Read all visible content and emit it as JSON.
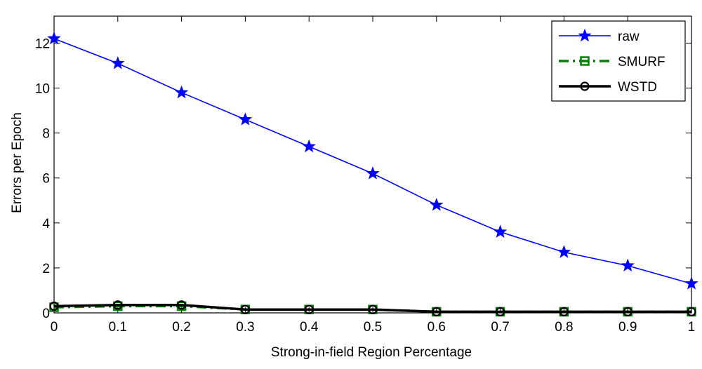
{
  "chart_data": {
    "type": "line",
    "title": "",
    "xlabel": "Strong-in-field Region Percentage",
    "ylabel": "Errors per Epoch",
    "x": [
      0,
      0.1,
      0.2,
      0.3,
      0.4,
      0.5,
      0.6,
      0.7,
      0.8,
      0.9,
      1
    ],
    "x_tick_labels": [
      "0",
      "0.1",
      "0.2",
      "0.3",
      "0.4",
      "0.5",
      "0.6",
      "0.7",
      "0.8",
      "0.9",
      "1"
    ],
    "y_ticks": [
      0,
      2,
      4,
      6,
      8,
      10,
      12
    ],
    "y_tick_labels": [
      "0",
      "2",
      "4",
      "6",
      "8",
      "10",
      "12"
    ],
    "xlim": [
      0,
      1
    ],
    "ylim": [
      0,
      13.2
    ],
    "grid": false,
    "legend_position": "top-right",
    "series": [
      {
        "name": "raw",
        "color": "#0000ff",
        "line_style": "solid",
        "marker": "star",
        "values": [
          12.2,
          11.1,
          9.8,
          8.6,
          7.4,
          6.2,
          4.8,
          3.6,
          2.7,
          2.1,
          1.3
        ]
      },
      {
        "name": "SMURF",
        "color": "#008000",
        "line_style": "dash-dot",
        "marker": "square",
        "values": [
          0.25,
          0.3,
          0.3,
          0.15,
          0.15,
          0.15,
          0.05,
          0.05,
          0.05,
          0.05,
          0.05
        ]
      },
      {
        "name": "WSTD",
        "color": "#000000",
        "line_style": "solid",
        "marker": "circle",
        "values": [
          0.3,
          0.35,
          0.35,
          0.15,
          0.15,
          0.15,
          0.05,
          0.05,
          0.05,
          0.05,
          0.05
        ]
      }
    ]
  }
}
